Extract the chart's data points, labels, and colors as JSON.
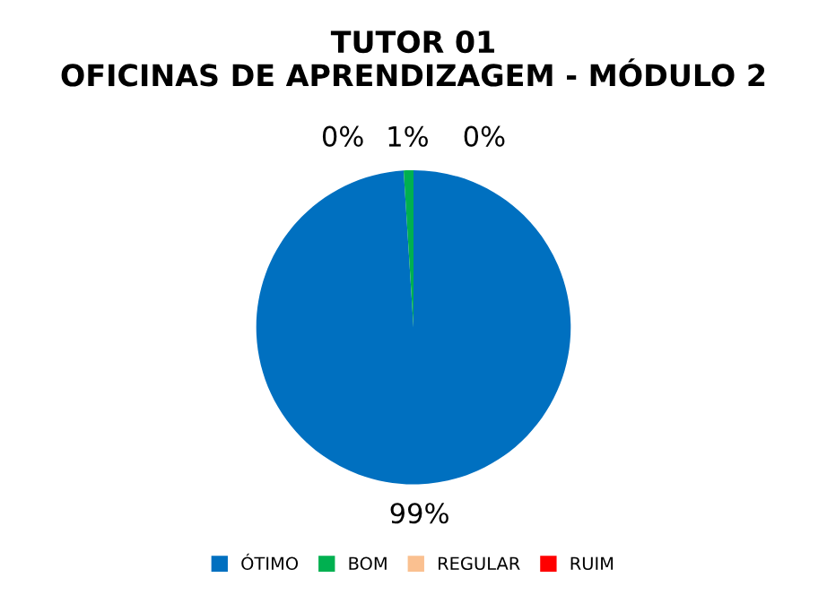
{
  "chart_data": {
    "type": "pie",
    "title": "TUTOR 01\nOFICINAS DE APRENDIZAGEM - MÓDULO 2",
    "categories": [
      "ÓTIMO",
      "BOM",
      "REGULAR",
      "RUIM"
    ],
    "values": [
      99,
      1,
      0,
      0
    ],
    "colors": [
      "#0070c0",
      "#00b050",
      "#fac090",
      "#ff0000"
    ],
    "value_labels": [
      "99%",
      "1%",
      "0%",
      "0%"
    ],
    "legend": "bottom"
  }
}
